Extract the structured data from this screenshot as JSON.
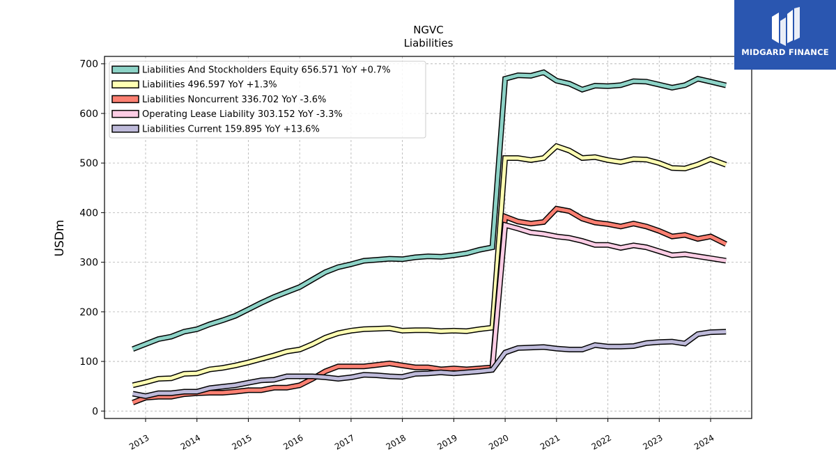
{
  "title": "NGVC",
  "subtitle": "Liabilities",
  "logo": {
    "text": "MIDGARD FINANCE",
    "color": "#2a56b0"
  },
  "chart_data": {
    "type": "line",
    "title": "NGVC",
    "subtitle": "Liabilities",
    "xlabel": "",
    "ylabel": "USDm",
    "ylim": [
      -15,
      715
    ],
    "xlim": [
      2012.2,
      2024.8
    ],
    "yticks": [
      0,
      100,
      200,
      300,
      400,
      500,
      600,
      700
    ],
    "xticks": [
      "2013",
      "2014",
      "2015",
      "2016",
      "2017",
      "2018",
      "2019",
      "2020",
      "2021",
      "2022",
      "2023",
      "2024"
    ],
    "grid": true,
    "legend_position": "top-left",
    "series": [
      {
        "name": "Liabilities And Stockholders Equity",
        "legend": "Liabilities And Stockholders Equity  656.571 YoY +0.7%",
        "color": "#8dd3c7",
        "x": [
          2012.75,
          2013.0,
          2013.25,
          2013.5,
          2013.75,
          2014.0,
          2014.25,
          2014.5,
          2014.75,
          2015.0,
          2015.25,
          2015.5,
          2015.75,
          2016.0,
          2016.25,
          2016.5,
          2016.75,
          2017.0,
          2017.25,
          2017.5,
          2017.75,
          2018.0,
          2018.25,
          2018.5,
          2018.75,
          2019.0,
          2019.25,
          2019.5,
          2019.75,
          2020.0,
          2020.25,
          2020.5,
          2020.75,
          2021.0,
          2021.25,
          2021.5,
          2021.75,
          2022.0,
          2022.25,
          2022.5,
          2022.75,
          2023.0,
          2023.25,
          2023.5,
          2023.75,
          2024.0,
          2024.3
        ],
        "values": [
          125,
          135,
          145,
          150,
          160,
          165,
          175,
          183,
          192,
          205,
          218,
          230,
          240,
          250,
          265,
          280,
          290,
          296,
          303,
          305,
          307,
          306,
          310,
          312,
          311,
          314,
          318,
          325,
          330,
          670,
          677,
          676,
          683,
          666,
          660,
          648,
          656,
          655,
          657,
          665,
          664,
          658,
          652,
          657,
          670,
          664,
          656.571
        ]
      },
      {
        "name": "Liabilities",
        "legend": "Liabilities  496.597 YoY +1.3%",
        "color": "#ffffb3",
        "x": [
          2012.75,
          2013.0,
          2013.25,
          2013.5,
          2013.75,
          2014.0,
          2014.25,
          2014.5,
          2014.75,
          2015.0,
          2015.25,
          2015.5,
          2015.75,
          2016.0,
          2016.25,
          2016.5,
          2016.75,
          2017.0,
          2017.25,
          2017.5,
          2017.75,
          2018.0,
          2018.25,
          2018.5,
          2018.75,
          2019.0,
          2019.25,
          2019.5,
          2019.75,
          2020.0,
          2020.25,
          2020.5,
          2020.75,
          2021.0,
          2021.25,
          2021.5,
          2021.75,
          2022.0,
          2022.25,
          2022.5,
          2022.75,
          2023.0,
          2023.25,
          2023.5,
          2023.75,
          2024.0,
          2024.3
        ],
        "values": [
          52,
          58,
          65,
          66,
          75,
          76,
          84,
          87,
          92,
          98,
          105,
          112,
          120,
          124,
          135,
          148,
          157,
          162,
          165,
          166,
          167,
          162,
          163,
          163,
          161,
          162,
          161,
          165,
          168,
          510,
          510,
          506,
          510,
          534,
          525,
          510,
          512,
          506,
          502,
          508,
          507,
          500,
          490,
          489,
          497,
          508,
          496.597
        ]
      },
      {
        "name": "Liabilities Noncurrent",
        "legend": "Liabilities Noncurrent  336.702 YoY -3.6%",
        "color": "#fb8072",
        "x": [
          2012.75,
          2013.0,
          2013.25,
          2013.5,
          2013.75,
          2014.0,
          2014.25,
          2014.5,
          2014.75,
          2015.0,
          2015.25,
          2015.5,
          2015.75,
          2016.0,
          2016.25,
          2016.5,
          2016.75,
          2017.0,
          2017.25,
          2017.5,
          2017.75,
          2018.0,
          2018.25,
          2018.5,
          2018.75,
          2019.0,
          2019.25,
          2019.5,
          2019.75,
          2020.0,
          2020.25,
          2020.5,
          2020.75,
          2021.0,
          2021.25,
          2021.5,
          2021.75,
          2022.0,
          2022.25,
          2022.5,
          2022.75,
          2023.0,
          2023.25,
          2023.5,
          2023.75,
          2024.0,
          2024.3
        ],
        "values": [
          17,
          27,
          29,
          29,
          34,
          36,
          37,
          37,
          39,
          42,
          42,
          47,
          47,
          52,
          65,
          80,
          90,
          90,
          90,
          93,
          96,
          92,
          88,
          88,
          84,
          86,
          84,
          86,
          88,
          392,
          382,
          378,
          381,
          408,
          403,
          388,
          380,
          377,
          372,
          378,
          372,
          363,
          352,
          355,
          347,
          352,
          336.702
        ]
      },
      {
        "name": "Operating Lease Liability",
        "legend": "Operating Lease Liability  303.152 YoY -3.3%",
        "color": "#fccde5",
        "x": [
          2019.75,
          2020.0,
          2020.25,
          2020.5,
          2020.75,
          2021.0,
          2021.25,
          2021.5,
          2021.75,
          2022.0,
          2022.25,
          2022.5,
          2022.75,
          2023.0,
          2023.25,
          2023.5,
          2023.75,
          2024.0,
          2024.3
        ],
        "values": [
          85,
          375,
          368,
          360,
          357,
          352,
          349,
          343,
          335,
          335,
          329,
          334,
          330,
          322,
          314,
          316,
          312,
          308,
          303.152
        ]
      },
      {
        "name": "Liabilities Current",
        "legend": "Liabilities Current  159.895 YoY +13.6%",
        "color": "#bebada",
        "x": [
          2012.75,
          2013.0,
          2013.25,
          2013.5,
          2013.75,
          2014.0,
          2014.25,
          2014.5,
          2014.75,
          2015.0,
          2015.25,
          2015.5,
          2015.75,
          2016.0,
          2016.25,
          2016.5,
          2016.75,
          2017.0,
          2017.25,
          2017.5,
          2017.75,
          2018.0,
          2018.25,
          2018.5,
          2018.75,
          2019.0,
          2019.25,
          2019.5,
          2019.75,
          2020.0,
          2020.25,
          2020.5,
          2020.75,
          2021.0,
          2021.25,
          2021.5,
          2021.75,
          2022.0,
          2022.25,
          2022.5,
          2022.75,
          2023.0,
          2023.25,
          2023.5,
          2023.75,
          2024.0,
          2024.3
        ],
        "values": [
          35,
          30,
          36,
          36,
          39,
          39,
          46,
          49,
          52,
          57,
          62,
          63,
          70,
          70,
          70,
          68,
          65,
          68,
          73,
          72,
          70,
          69,
          75,
          76,
          78,
          76,
          78,
          80,
          83,
          118,
          127,
          128,
          129,
          126,
          124,
          124,
          133,
          130,
          130,
          131,
          137,
          139,
          140,
          136,
          155,
          159,
          159.895
        ]
      }
    ]
  }
}
